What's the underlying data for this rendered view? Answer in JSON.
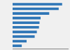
{
  "chart_data": {
    "type": "bar",
    "orientation": "horizontal",
    "categories": [
      null,
      null,
      null,
      null,
      null,
      null,
      null,
      null,
      null,
      null
    ],
    "values": [
      46.0,
      42.8,
      34.0,
      26.0,
      25.0,
      24.5,
      22.5,
      20.5,
      13.0,
      8.5
    ],
    "color": "#2e75b6",
    "xlim": [
      0,
      52
    ],
    "grid": false,
    "tick_labels": false
  }
}
